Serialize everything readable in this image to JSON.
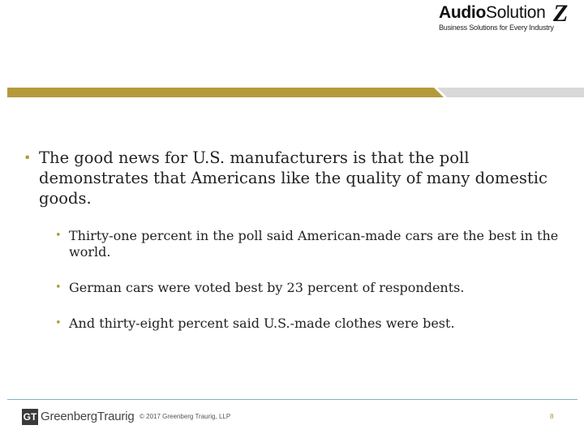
{
  "header": {
    "logo_bold": "Audio",
    "logo_regular": "Solution",
    "logo_mark": "Z",
    "logo_tagline": "Business Solutions for Every Industry",
    "band_color": "#b49a3c"
  },
  "content": {
    "main_bullet": "The good news for U.S. manufacturers is that the poll demonstrates that Americans like the quality of many domestic goods.",
    "sub_bullets": [
      "Thirty-one percent in the poll said American-made cars are the best in the world.",
      "German cars were voted best by 23 percent of respondents.",
      "And thirty-eight percent said U.S.-made clothes were best."
    ],
    "bullet_glyph": "•",
    "bullet_color": "#b59a3c"
  },
  "footer": {
    "gt_initials": "GT",
    "firm_name": "GreenbergTraurig",
    "copyright": "© 2017 Greenberg Traurig, LLP",
    "page_number": "8"
  }
}
